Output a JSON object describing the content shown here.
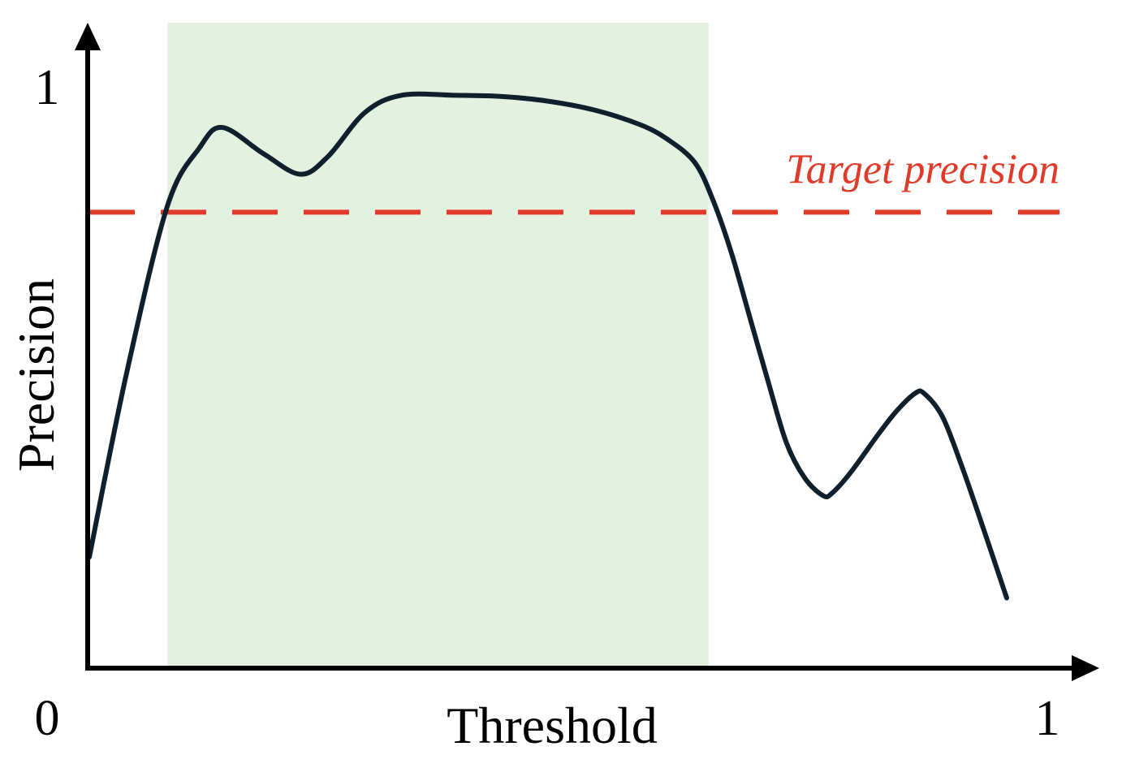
{
  "chart_data": {
    "type": "line",
    "xlabel": "Threshold",
    "ylabel": "Precision",
    "xlim": [
      0,
      1
    ],
    "ylim": [
      0,
      1
    ],
    "tick_labels": {
      "origin": "0",
      "x_max": "1",
      "y_max": "1"
    },
    "target": {
      "label": "Target precision",
      "value": 0.78,
      "color": "#e03a2a"
    },
    "highlight": {
      "x_start": 0.085,
      "x_end": 0.675,
      "color": "#e5f1e0"
    },
    "series": [
      {
        "color": "#0f1f2c",
        "x": [
          0.0,
          0.04,
          0.085,
          0.12,
          0.145,
          0.19,
          0.23,
          0.26,
          0.3,
          0.34,
          0.4,
          0.45,
          0.5,
          0.55,
          0.6,
          0.63,
          0.66,
          0.68,
          0.7,
          0.72,
          0.74,
          0.76,
          0.78,
          0.8,
          0.81,
          0.83,
          0.86,
          0.88,
          0.9,
          0.91,
          0.93,
          0.95,
          0.97,
          1.0
        ],
        "y": [
          0.19,
          0.5,
          0.79,
          0.89,
          0.925,
          0.88,
          0.845,
          0.875,
          0.95,
          0.98,
          0.98,
          0.978,
          0.97,
          0.955,
          0.93,
          0.905,
          0.865,
          0.8,
          0.71,
          0.6,
          0.49,
          0.385,
          0.325,
          0.295,
          0.3,
          0.335,
          0.4,
          0.44,
          0.47,
          0.47,
          0.43,
          0.35,
          0.26,
          0.12
        ]
      }
    ]
  }
}
